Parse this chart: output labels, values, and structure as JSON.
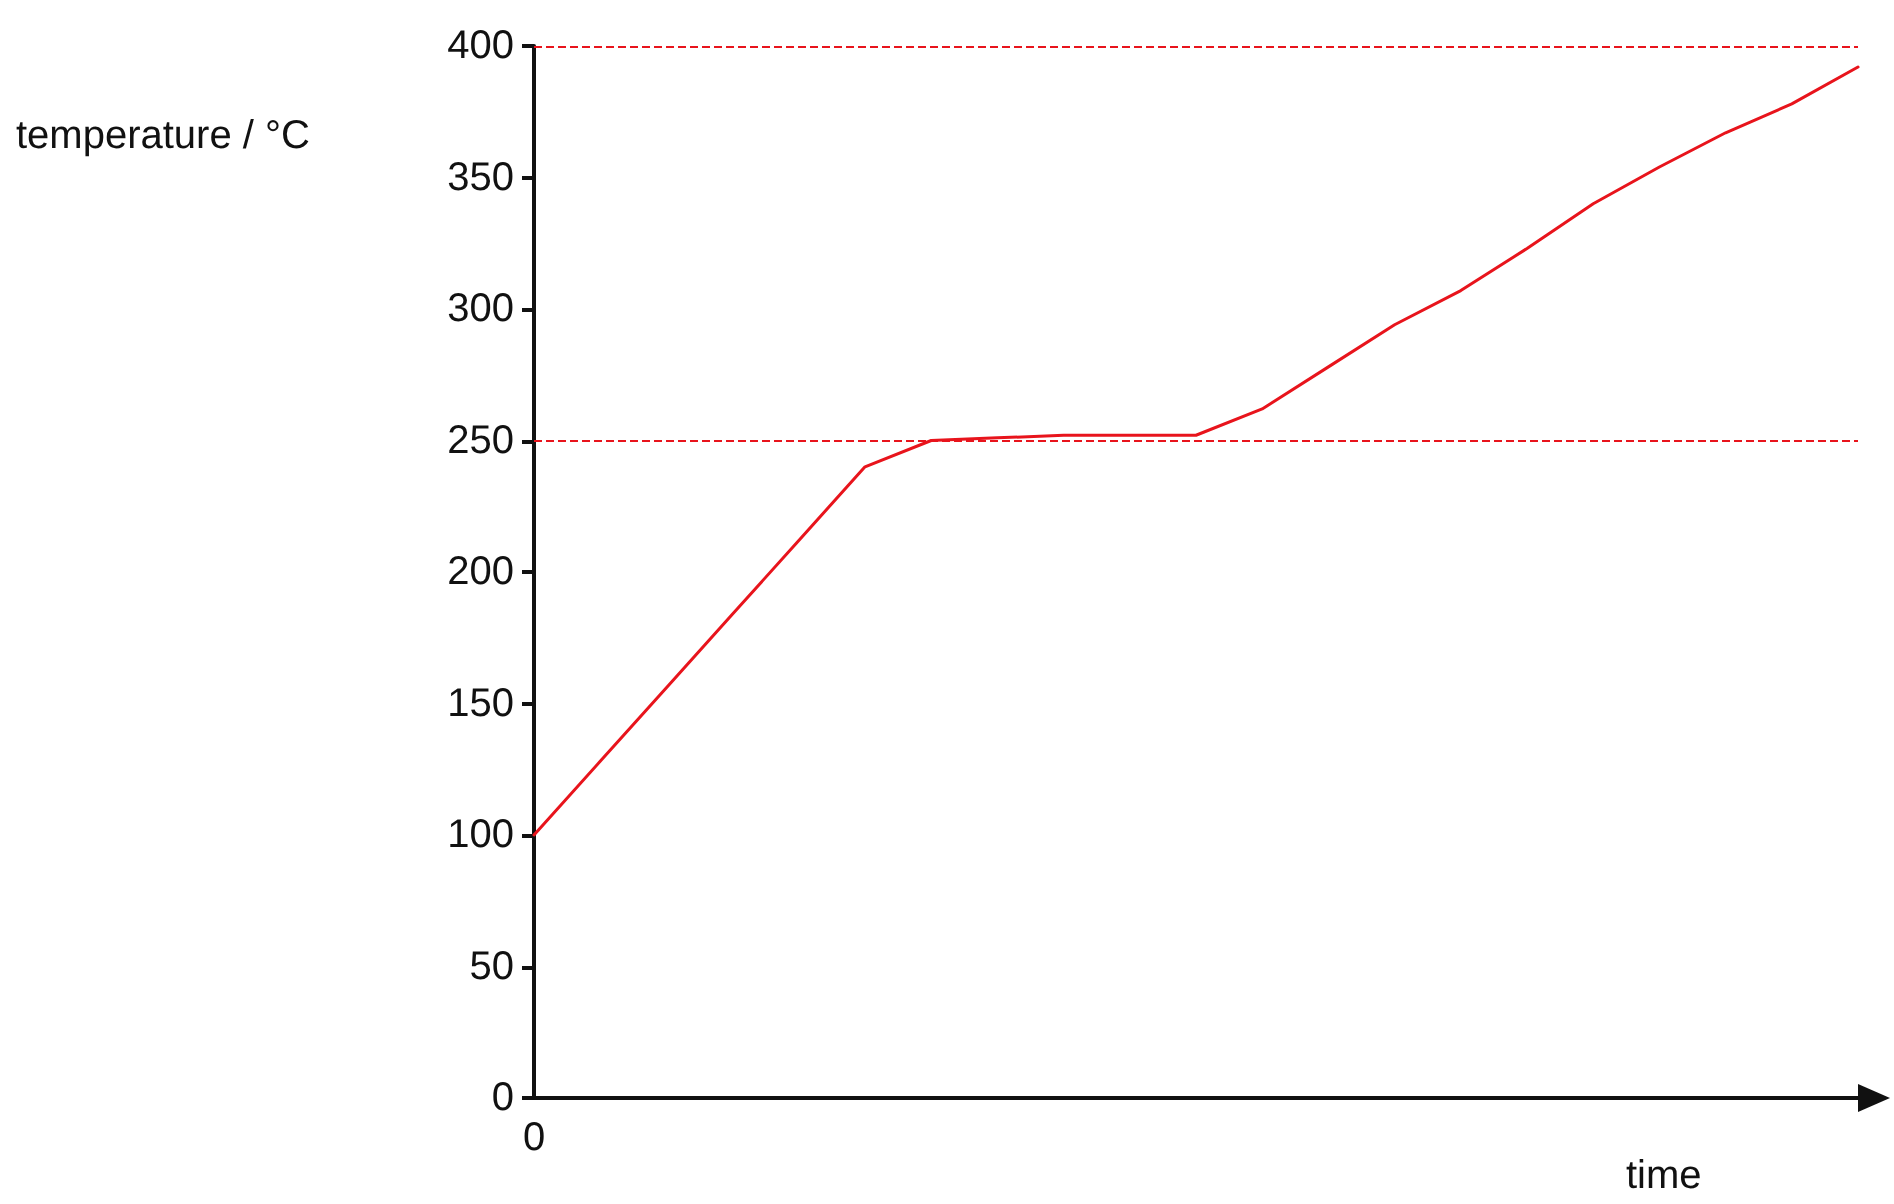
{
  "chart_data": {
    "type": "line",
    "xlabel": "time",
    "ylabel": "temperature / °C",
    "categories": [
      "0",
      null,
      null,
      null,
      null,
      null,
      null,
      null,
      null,
      null,
      null,
      null,
      null,
      null,
      null,
      null,
      null,
      null,
      null,
      null,
      null
    ],
    "series": [
      {
        "color": "#e8141c",
        "values": [
          100,
          128,
          156,
          184,
          212,
          240,
          250,
          251,
          252,
          252,
          252,
          262,
          278,
          294,
          307,
          323,
          340,
          354,
          367,
          378,
          392
        ]
      }
    ],
    "ylim": [
      0,
      400
    ],
    "yticks": [
      0,
      50,
      100,
      150,
      200,
      250,
      300,
      350,
      400
    ],
    "ref_lines": [
      {
        "axis": "y",
        "value": 250,
        "color": "#e8141c",
        "line_style": "dashed"
      },
      {
        "axis": "y",
        "value": 400,
        "color": "#e8141c",
        "line_style": "dashed"
      }
    ],
    "grid": false,
    "marker": "none",
    "line_style": "solid"
  }
}
